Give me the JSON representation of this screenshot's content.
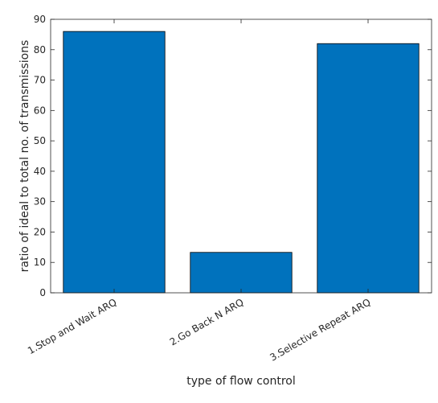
{
  "chart_data": {
    "type": "bar",
    "title": "",
    "xlabel": "type of flow control",
    "ylabel": "ratio of ideal to total no. of transmissions",
    "categories": [
      "1.Stop and Wait ARQ",
      "2.Go Back N ARQ",
      "3.Selective Repeat ARQ"
    ],
    "values": [
      86,
      13.3,
      82
    ],
    "ylim": [
      0,
      90
    ],
    "yticks": [
      0,
      10,
      20,
      30,
      40,
      50,
      60,
      70,
      80,
      90
    ],
    "grid": false,
    "legend": "none",
    "bar_color": "#0072BD",
    "bar_edge_color": "#000000"
  }
}
